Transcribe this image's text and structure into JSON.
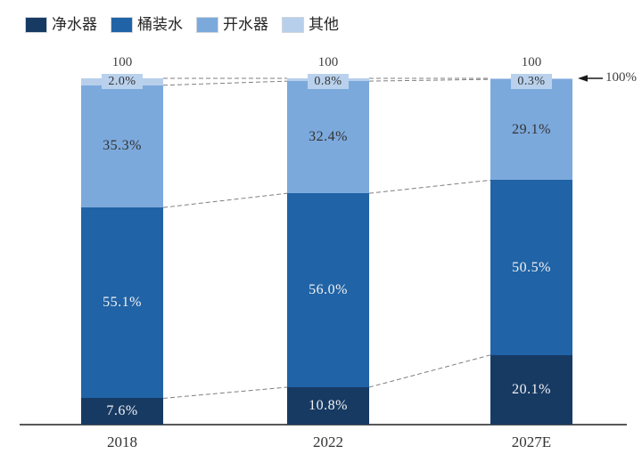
{
  "legend": {
    "items": [
      {
        "label": "净水器",
        "color": "#173A63"
      },
      {
        "label": "桶装水",
        "color": "#2063A6"
      },
      {
        "label": "开水器",
        "color": "#7CA9DC"
      },
      {
        "label": "其他",
        "color": "#B7CFEB"
      }
    ]
  },
  "annotation": {
    "arrow_label": "100%"
  },
  "axis": {
    "line_color": "#404040"
  },
  "connector": {
    "color": "#7f7f7f",
    "dash": "5 3"
  },
  "chart_data": {
    "type": "bar",
    "stacked": true,
    "percent": true,
    "title": "",
    "xlabel": "",
    "ylabel": "",
    "ylim": [
      0,
      100
    ],
    "grid": false,
    "legend_position": "top-left",
    "categories": [
      "2018",
      "2022",
      "2027E"
    ],
    "totals": [
      "100",
      "100",
      "100"
    ],
    "series": [
      {
        "name": "净水器",
        "color": "#173A63",
        "values": [
          7.6,
          10.8,
          20.1
        ],
        "labels": [
          "7.6%",
          "10.8%",
          "20.1%"
        ],
        "label_color": "#f2f2f2"
      },
      {
        "name": "桶装水",
        "color": "#2063A6",
        "values": [
          55.1,
          56.0,
          50.5
        ],
        "labels": [
          "55.1%",
          "56.0%",
          "50.5%"
        ],
        "label_color": "#f2f2f2"
      },
      {
        "name": "开水器",
        "color": "#7CA9DC",
        "values": [
          35.3,
          32.4,
          29.1
        ],
        "labels": [
          "35.3%",
          "32.4%",
          "29.1%"
        ],
        "label_color": "#333333"
      },
      {
        "name": "其他",
        "color": "#B7CFEB",
        "values": [
          2.0,
          0.8,
          0.3
        ],
        "labels": [
          "2.0%",
          "0.8%",
          "0.3%"
        ],
        "label_color": "#333333",
        "label_style": "boxed-above",
        "label_bg": "#B9D1EC"
      }
    ],
    "annotations": [
      {
        "text": "100%",
        "target": "top-of-2027E-bar",
        "arrow": "left"
      }
    ],
    "connectors": "dashed-lines-between-adjacent-bars-at-segment-boundaries"
  }
}
